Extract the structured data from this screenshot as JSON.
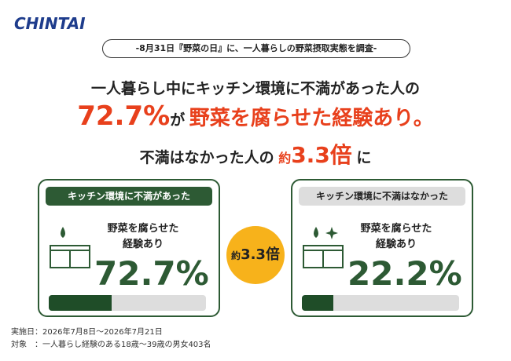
{
  "logo": "CHINTAI",
  "subtitle": "-8月31日『野菜の日』に、一人暮らしの野菜摂取実態を調査-",
  "headline": {
    "line1": "一人暮らし中にキッチン環境に不満があった人の",
    "line2": {
      "rate": "72.7%",
      "particle": "が",
      "result": "野菜を腐らせた経験あり。"
    },
    "line3": {
      "lead": "不満はなかった人の",
      "about": "約",
      "ratio": "3.3倍",
      "tail": "に"
    }
  },
  "badge": {
    "about": "約",
    "ratio": "3.3倍"
  },
  "panels": [
    {
      "header": "キッチン環境に不満があった",
      "text1": "野菜を腐らせた",
      "text2": "経験あり",
      "value": "72.7%"
    },
    {
      "header": "キッチン環境に不満はなかった",
      "text1": "野菜を腐らせた",
      "text2": "経験あり",
      "value": "22.2%"
    }
  ],
  "footer": {
    "date": "実施日：2026年7月8日～2026年7月21日",
    "target": "対象　：一人暮らし経験のある18歳～39歳の男女403名"
  }
}
